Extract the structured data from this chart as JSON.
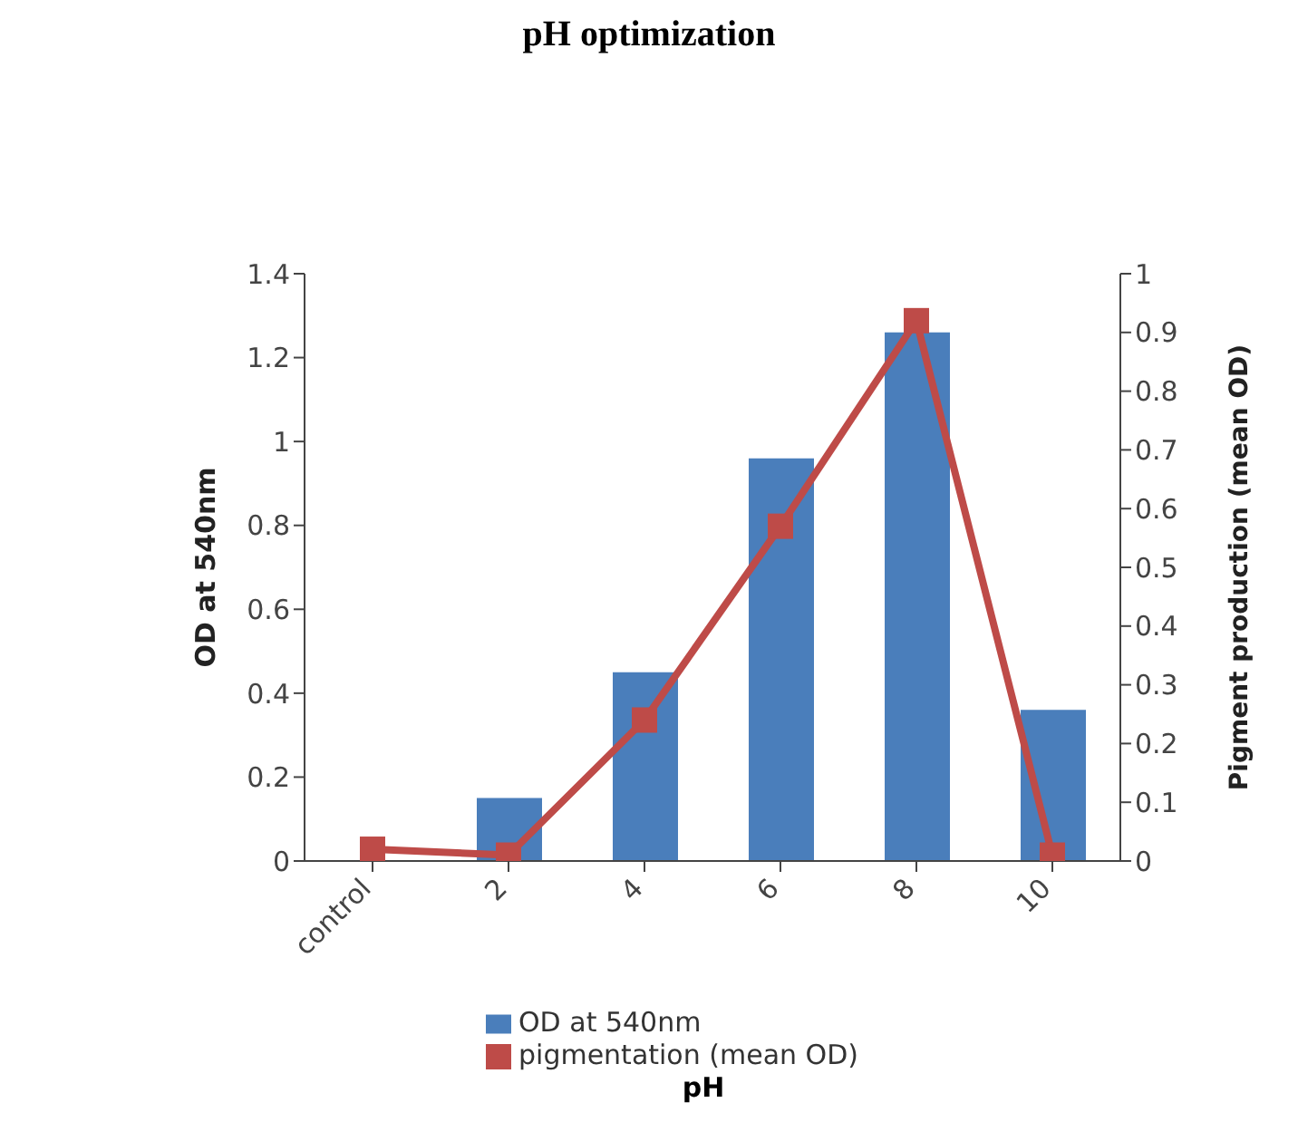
{
  "chart_data": {
    "type": "bar",
    "title": "pH optimization",
    "xlabel": "pH",
    "ylabel": "OD at 540nm",
    "y2label": "Pigment production (mean OD)",
    "categories": [
      "control",
      "2",
      "4",
      "6",
      "8",
      "10"
    ],
    "series": [
      {
        "name": "OD at 540nm",
        "color": "#4a7ebb",
        "values": [
          null,
          0.15,
          0.45,
          0.96,
          1.26,
          0.36
        ]
      },
      {
        "name": "pigmentation (mean OD)",
        "type": "line",
        "axis": "y2",
        "color": "#be4b48",
        "marker": "square",
        "values": [
          0.02,
          0.01,
          0.24,
          0.57,
          0.92,
          0.01
        ]
      }
    ],
    "ylim": [
      0,
      1.4
    ],
    "yticks": [
      0,
      0.2,
      0.4,
      0.6,
      0.8,
      1,
      1.2,
      1.4
    ],
    "y2lim": [
      0,
      1
    ],
    "y2ticks": [
      0,
      0.1,
      0.2,
      0.3,
      0.4,
      0.5,
      0.6,
      0.7,
      0.8,
      0.9,
      1
    ],
    "grid": false,
    "legend": "bottom"
  }
}
